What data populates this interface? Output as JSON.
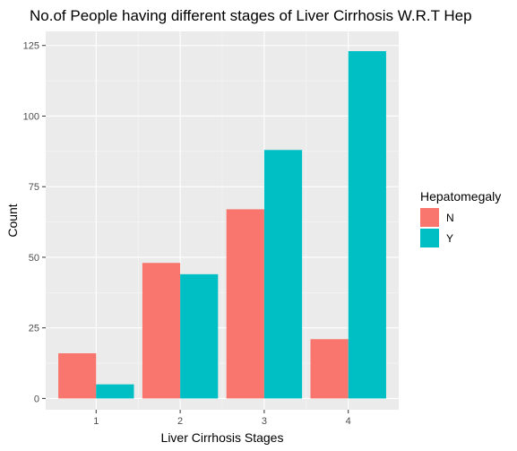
{
  "chart_data": {
    "type": "bar",
    "title": "No.of People having different stages of Liver Cirrhosis W.R.T Hep",
    "xlabel": "Liver Cirrhosis Stages",
    "ylabel": "Count",
    "categories": [
      "1",
      "2",
      "3",
      "4"
    ],
    "series": [
      {
        "name": "N",
        "values": [
          16,
          48,
          67,
          21
        ],
        "color": "#F8766D"
      },
      {
        "name": "Y",
        "values": [
          5,
          44,
          88,
          123
        ],
        "color": "#00BFC4"
      }
    ],
    "ylim": [
      -4,
      130
    ],
    "yticks": [
      0,
      25,
      50,
      75,
      100,
      125
    ],
    "legend_title": "Hepatomegaly",
    "legend_position": "right",
    "grid": true,
    "panel_background": "#EBEBEB"
  }
}
